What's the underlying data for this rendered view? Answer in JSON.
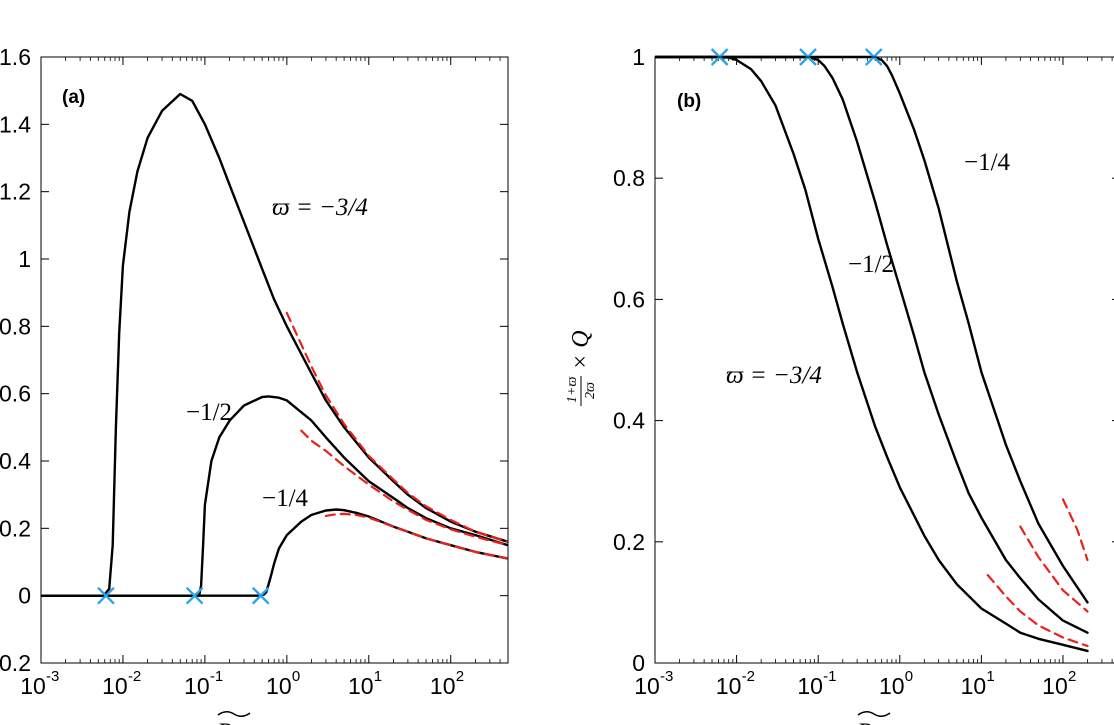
{
  "chart_data": [
    {
      "type": "line",
      "panel_label": "(a)",
      "xscale": "log",
      "xlim": [
        0.001,
        500
      ],
      "ylim": [
        -0.2,
        1.6
      ],
      "xticks": [
        {
          "value": 0.001,
          "base": "10",
          "exp": "-3"
        },
        {
          "value": 0.01,
          "base": "10",
          "exp": "-2"
        },
        {
          "value": 0.1,
          "base": "10",
          "exp": "-1"
        },
        {
          "value": 1,
          "base": "10",
          "exp": "0"
        },
        {
          "value": 10,
          "base": "10",
          "exp": "1"
        },
        {
          "value": 100,
          "base": "10",
          "exp": "2"
        }
      ],
      "yticks": [
        {
          "value": -0.2,
          "label": "-0.2"
        },
        {
          "value": 0,
          "label": "0"
        },
        {
          "value": 0.2,
          "label": "0.2"
        },
        {
          "value": 0.4,
          "label": "0.4"
        },
        {
          "value": 0.6,
          "label": "0.6"
        },
        {
          "value": 0.8,
          "label": "0.8"
        },
        {
          "value": 1.0,
          "label": "1"
        },
        {
          "value": 1.2,
          "label": "1.2"
        },
        {
          "value": 1.4,
          "label": "1.4"
        },
        {
          "value": 1.6,
          "label": "1.6"
        }
      ],
      "xlabel": "Re",
      "series": [
        {
          "name": "ϖ = −3/4",
          "label_text": "ϖ = −3/4",
          "style": "solid",
          "color": "#000000",
          "x": [
            0.001,
            0.0058,
            0.0068,
            0.0075,
            0.0082,
            0.009,
            0.01,
            0.012,
            0.015,
            0.02,
            0.03,
            0.05,
            0.07,
            0.1,
            0.15,
            0.2,
            0.3,
            0.5,
            0.7,
            1,
            2,
            3,
            5,
            10,
            20,
            30,
            50,
            100,
            200,
            500
          ],
          "y": [
            0,
            0,
            0.02,
            0.15,
            0.5,
            0.78,
            0.98,
            1.14,
            1.26,
            1.36,
            1.44,
            1.49,
            1.47,
            1.4,
            1.3,
            1.22,
            1.11,
            0.97,
            0.88,
            0.8,
            0.66,
            0.58,
            0.5,
            0.41,
            0.34,
            0.3,
            0.26,
            0.22,
            0.19,
            0.16
          ]
        },
        {
          "name": "−1/2",
          "label_text": "−1/2",
          "style": "solid",
          "color": "#000000",
          "x": [
            0.001,
            0.07,
            0.085,
            0.09,
            0.095,
            0.1,
            0.12,
            0.15,
            0.2,
            0.3,
            0.5,
            0.6,
            0.8,
            1,
            2,
            3,
            5,
            10,
            20,
            30,
            50,
            100,
            200,
            500
          ],
          "y": [
            0,
            0,
            0,
            0.03,
            0.15,
            0.27,
            0.4,
            0.47,
            0.52,
            0.565,
            0.59,
            0.592,
            0.588,
            0.58,
            0.52,
            0.47,
            0.41,
            0.34,
            0.29,
            0.26,
            0.23,
            0.2,
            0.18,
            0.15
          ]
        },
        {
          "name": "−1/4",
          "label_text": "−1/4",
          "style": "solid",
          "color": "#000000",
          "x": [
            0.001,
            0.45,
            0.52,
            0.56,
            0.6,
            0.65,
            0.7,
            0.8,
            1,
            1.5,
            2,
            3,
            4,
            5,
            7,
            10,
            20,
            30,
            50,
            100,
            200,
            500
          ],
          "y": [
            0,
            0,
            0.003,
            0.01,
            0.035,
            0.065,
            0.095,
            0.14,
            0.18,
            0.22,
            0.24,
            0.253,
            0.256,
            0.254,
            0.246,
            0.235,
            0.205,
            0.19,
            0.17,
            0.15,
            0.13,
            0.11
          ]
        },
        {
          "name": "asymptote −3/4",
          "style": "dashed",
          "color": "#e8221b",
          "x": [
            1,
            2,
            3,
            5,
            10,
            20,
            30,
            50,
            100,
            200,
            500
          ],
          "y": [
            0.84,
            0.68,
            0.595,
            0.51,
            0.415,
            0.345,
            0.305,
            0.265,
            0.225,
            0.19,
            0.16
          ]
        },
        {
          "name": "asymptote −1/2",
          "style": "dashed",
          "color": "#e8221b",
          "x": [
            1.5,
            2,
            3,
            5,
            10,
            20,
            30,
            50,
            100,
            200,
            500
          ],
          "y": [
            0.49,
            0.46,
            0.43,
            0.385,
            0.33,
            0.28,
            0.255,
            0.225,
            0.197,
            0.175,
            0.15
          ]
        },
        {
          "name": "asymptote −1/4",
          "style": "dashed",
          "color": "#e8221b",
          "x": [
            3,
            4,
            5,
            7,
            10,
            20,
            30,
            50,
            100,
            200,
            500
          ],
          "y": [
            0.237,
            0.242,
            0.243,
            0.24,
            0.232,
            0.205,
            0.19,
            0.17,
            0.15,
            0.13,
            0.11
          ]
        }
      ],
      "markers": {
        "symbol": "x",
        "color": "#2ba3e6",
        "points": [
          [
            0.0062,
            0
          ],
          [
            0.075,
            0
          ],
          [
            0.48,
            0
          ]
        ]
      }
    },
    {
      "type": "line",
      "panel_label": "(b)",
      "xscale": "log",
      "xlim": [
        0.001,
        500
      ],
      "ylim": [
        0,
        1
      ],
      "xticks": [
        {
          "value": 0.001,
          "base": "10",
          "exp": "-3"
        },
        {
          "value": 0.01,
          "base": "10",
          "exp": "-2"
        },
        {
          "value": 0.1,
          "base": "10",
          "exp": "-1"
        },
        {
          "value": 1,
          "base": "10",
          "exp": "0"
        },
        {
          "value": 10,
          "base": "10",
          "exp": "1"
        },
        {
          "value": 100,
          "base": "10",
          "exp": "2"
        }
      ],
      "yticks": [
        {
          "value": 0,
          "label": "0"
        },
        {
          "value": 0.2,
          "label": "0.2"
        },
        {
          "value": 0.4,
          "label": "0.4"
        },
        {
          "value": 0.6,
          "label": "0.6"
        },
        {
          "value": 0.8,
          "label": "0.8"
        },
        {
          "value": 1,
          "label": "1"
        }
      ],
      "xlabel": "Re",
      "ylabel": {
        "frac_num": "1+ϖ",
        "frac_den": "2ϖ",
        "rest": "× Q"
      },
      "series": [
        {
          "name": "ϖ = −3/4",
          "label_text": "ϖ = −3/4",
          "style": "solid",
          "color": "#000000",
          "x": [
            0.001,
            0.006,
            0.008,
            0.01,
            0.015,
            0.02,
            0.03,
            0.05,
            0.07,
            0.1,
            0.15,
            0.2,
            0.3,
            0.5,
            0.7,
            1,
            2,
            3,
            5,
            10,
            20,
            30,
            50,
            100,
            200
          ],
          "y": [
            1,
            1,
            0.999,
            0.995,
            0.98,
            0.96,
            0.92,
            0.84,
            0.78,
            0.7,
            0.62,
            0.56,
            0.48,
            0.39,
            0.34,
            0.29,
            0.21,
            0.17,
            0.13,
            0.09,
            0.065,
            0.05,
            0.04,
            0.03,
            0.02
          ]
        },
        {
          "name": "−1/2",
          "label_text": "−1/2",
          "style": "solid",
          "color": "#000000",
          "x": [
            0.001,
            0.075,
            0.1,
            0.12,
            0.15,
            0.2,
            0.3,
            0.5,
            0.7,
            1,
            1.5,
            2,
            3,
            5,
            7,
            10,
            20,
            30,
            50,
            100,
            200
          ],
          "y": [
            1,
            1,
            0.995,
            0.985,
            0.965,
            0.93,
            0.86,
            0.76,
            0.69,
            0.62,
            0.54,
            0.48,
            0.41,
            0.33,
            0.28,
            0.24,
            0.17,
            0.14,
            0.105,
            0.07,
            0.05
          ]
        },
        {
          "name": "−1/4",
          "label_text": "−1/4",
          "style": "solid",
          "color": "#000000",
          "x": [
            0.001,
            0.48,
            0.6,
            0.7,
            0.8,
            1,
            1.5,
            2,
            3,
            5,
            7,
            10,
            15,
            20,
            30,
            50,
            100,
            200
          ],
          "y": [
            1,
            1,
            0.995,
            0.985,
            0.97,
            0.94,
            0.88,
            0.83,
            0.75,
            0.63,
            0.56,
            0.48,
            0.41,
            0.36,
            0.3,
            0.23,
            0.16,
            0.1
          ]
        },
        {
          "name": "asymptote −3/4",
          "style": "dashed",
          "color": "#e8221b",
          "x": [
            12,
            20,
            30,
            50,
            100,
            200
          ],
          "y": [
            0.145,
            0.11,
            0.085,
            0.062,
            0.042,
            0.028
          ]
        },
        {
          "name": "asymptote −1/2",
          "style": "dashed",
          "color": "#e8221b",
          "x": [
            30,
            50,
            100,
            200
          ],
          "y": [
            0.225,
            0.175,
            0.12,
            0.085
          ]
        },
        {
          "name": "asymptote −1/4",
          "style": "dashed",
          "color": "#e8221b",
          "x": [
            100,
            150,
            200
          ],
          "y": [
            0.27,
            0.22,
            0.17
          ]
        }
      ],
      "markers": {
        "symbol": "x",
        "color": "#2ba3e6",
        "points": [
          [
            0.0062,
            1
          ],
          [
            0.075,
            1
          ],
          [
            0.48,
            1
          ]
        ]
      }
    }
  ]
}
